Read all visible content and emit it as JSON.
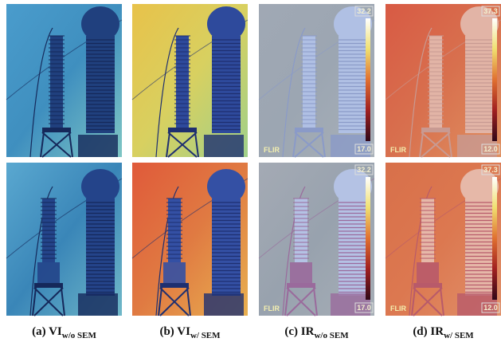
{
  "panels": [
    {
      "label": "(a) VI",
      "subscript": "w/o SEM"
    },
    {
      "label": "(b) VI",
      "subscript": "w/ SEM"
    },
    {
      "label": "(c) IR",
      "subscript": "w/o SEM",
      "overlay": {
        "logo": "FLIR",
        "max": "32.2",
        "min": "17.0"
      }
    },
    {
      "label": "(d) IR",
      "subscript": "w/ SEM",
      "overlay": {
        "logo": "FLIR",
        "max": "37.3",
        "min": "12.0"
      }
    }
  ]
}
